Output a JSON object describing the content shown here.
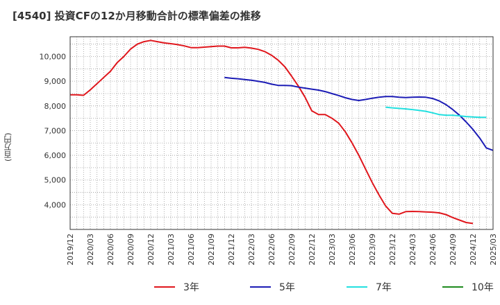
{
  "chart_data": {
    "type": "line",
    "title": "[4540]  投資CFの12か月移動合計の標準偏差の推移",
    "ylabel": "(百万円)",
    "xlabel": "",
    "y_range": [
      3000,
      10800
    ],
    "y_ticks": [
      {
        "value": 4000,
        "label": "4,000"
      },
      {
        "value": 5000,
        "label": "5,000"
      },
      {
        "value": 6000,
        "label": "6,000"
      },
      {
        "value": 7000,
        "label": "7,000"
      },
      {
        "value": 8000,
        "label": "8,000"
      },
      {
        "value": 9000,
        "label": "9,000"
      },
      {
        "value": 10000,
        "label": "10,000"
      }
    ],
    "x_ticks": [
      "2019/12",
      "2020/03",
      "2020/06",
      "2020/09",
      "2020/12",
      "2021/03",
      "2021/06",
      "2021/09",
      "2021/12",
      "2022/03",
      "2022/06",
      "2022/09",
      "2022/12",
      "2023/03",
      "2023/06",
      "2023/09",
      "2023/12",
      "2024/03",
      "2024/06",
      "2024/09",
      "2024/12",
      "2025/03"
    ],
    "grid": true,
    "legend_position": "bottom",
    "series": [
      {
        "name": "3年",
        "color": "#e0161c",
        "start_index": 0,
        "values": [
          8450,
          8450,
          8430,
          8650,
          8900,
          9150,
          9400,
          9750,
          10000,
          10300,
          10500,
          10600,
          10650,
          10600,
          10550,
          10520,
          10480,
          10430,
          10360,
          10360,
          10380,
          10400,
          10420,
          10420,
          10350,
          10350,
          10370,
          10340,
          10290,
          10200,
          10050,
          9850,
          9580,
          9200,
          8800,
          8350,
          7800,
          7650,
          7650,
          7500,
          7300,
          6950,
          6500,
          6000,
          5450,
          4900,
          4400,
          3950,
          3650,
          3620,
          3720,
          3730,
          3720,
          3710,
          3700,
          3670,
          3600,
          3480,
          3380,
          3280,
          3240
        ]
      },
      {
        "name": "5年",
        "color": "#1b1bb5",
        "start_index": 23,
        "values": [
          9150,
          9120,
          9100,
          9070,
          9040,
          9000,
          8950,
          8880,
          8830,
          8830,
          8820,
          8760,
          8720,
          8680,
          8640,
          8580,
          8500,
          8420,
          8330,
          8260,
          8220,
          8260,
          8310,
          8350,
          8380,
          8380,
          8350,
          8340,
          8350,
          8360,
          8350,
          8300,
          8200,
          8050,
          7850,
          7620,
          7350,
          7050,
          6700,
          6300,
          6200
        ]
      },
      {
        "name": "7年",
        "color": "#22e0e0",
        "start_index": 47,
        "values": [
          7950,
          7920,
          7900,
          7880,
          7850,
          7820,
          7780,
          7720,
          7650,
          7620,
          7620,
          7600,
          7570,
          7550,
          7540,
          7540
        ]
      },
      {
        "name": "10年",
        "color": "#1e8a1e",
        "start_index": 0,
        "values": []
      }
    ]
  }
}
